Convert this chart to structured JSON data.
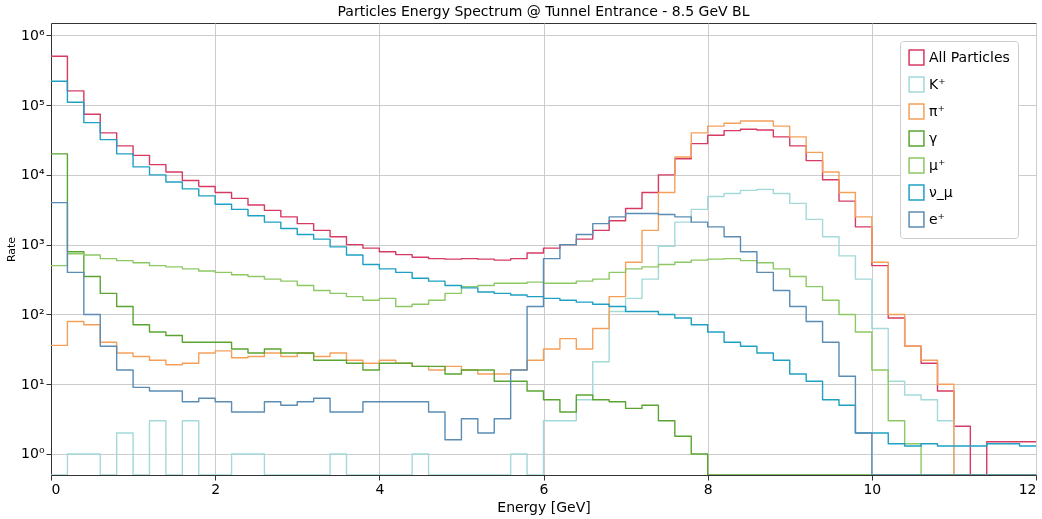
{
  "chart_data": {
    "type": "histogram",
    "title": "Particles Energy Spectrum @ Tunnel Entrance - 8.5 GeV BL",
    "xlabel": "Energy [GeV]",
    "ylabel": "Rate",
    "bins": [
      0,
      0.2,
      0.4,
      0.6,
      0.8,
      1.0,
      1.2,
      1.4,
      1.6,
      1.8,
      2.0,
      2.2,
      2.4,
      2.6,
      2.8,
      3.0,
      3.2,
      3.4,
      3.6,
      3.8,
      4.0,
      4.2,
      4.4,
      4.6,
      4.8,
      5.0,
      5.2,
      5.4,
      5.6,
      5.8,
      6.0,
      6.2,
      6.4,
      6.6,
      6.8,
      7.0,
      7.2,
      7.4,
      7.6,
      7.8,
      8.0,
      8.2,
      8.4,
      8.6,
      8.8,
      9.0,
      9.2,
      9.4,
      9.6,
      9.8,
      10.0,
      10.2,
      10.4,
      10.6,
      10.8,
      11.0,
      11.2,
      11.4,
      11.6,
      11.8,
      12.0
    ],
    "series": [
      {
        "name": "All Particles",
        "color": "#d63a62",
        "values": [
          500000,
          160000,
          74000,
          40000,
          26000,
          19000,
          14000,
          11000,
          8300,
          6800,
          5600,
          4600,
          3700,
          3100,
          2500,
          2000,
          1600,
          1300,
          1000,
          890,
          790,
          720,
          660,
          630,
          620,
          630,
          620,
          600,
          630,
          760,
          890,
          1000,
          1200,
          1600,
          2200,
          3300,
          5600,
          10000,
          17000,
          28000,
          37000,
          43000,
          45000,
          44000,
          35000,
          26000,
          16000,
          8500,
          4200,
          1800,
          500,
          89,
          35,
          20,
          8,
          2.5,
          null,
          1.5,
          1.5,
          1.5
        ]
      },
      {
        "name": "K⁺",
        "color": "#a3d9d9",
        "values": [
          null,
          1,
          1,
          null,
          2,
          null,
          3,
          null,
          3,
          null,
          null,
          1,
          1,
          null,
          null,
          null,
          null,
          1,
          null,
          null,
          null,
          null,
          1,
          null,
          null,
          null,
          null,
          null,
          1,
          null,
          3,
          3,
          6,
          21,
          110,
          170,
          320,
          950,
          2100,
          3200,
          4900,
          5400,
          6000,
          6200,
          5400,
          3900,
          2300,
          1300,
          690,
          320,
          63,
          11,
          7,
          6,
          3,
          null,
          null,
          null,
          null,
          null
        ]
      },
      {
        "name": "π⁺",
        "color": "#f5a05a",
        "values": [
          36,
          79,
          71,
          40,
          28,
          25,
          22,
          19,
          20,
          28,
          30,
          24,
          25,
          28,
          25,
          28,
          25,
          28,
          22,
          20,
          22,
          20,
          18,
          16,
          18,
          16,
          14,
          14,
          16,
          22,
          32,
          45,
          32,
          63,
          180,
          560,
          1600,
          5600,
          18000,
          40000,
          50000,
          55000,
          59000,
          59000,
          50000,
          35000,
          21000,
          11000,
          5600,
          2500,
          560,
          100,
          35,
          22,
          10,
          null,
          null,
          null,
          null,
          null
        ]
      },
      {
        "name": "γ",
        "color": "#5aa532",
        "values": [
          20000,
          790,
          350,
          200,
          130,
          71,
          56,
          50,
          40,
          40,
          40,
          32,
          28,
          32,
          28,
          28,
          22,
          22,
          20,
          16,
          20,
          20,
          18,
          18,
          14,
          16,
          16,
          11,
          11,
          8,
          6,
          4,
          7,
          6,
          5.6,
          4.5,
          5,
          3,
          1.8,
          1,
          null,
          null,
          null,
          null,
          null,
          null,
          null,
          null,
          null,
          null,
          null,
          null,
          null,
          null,
          null,
          null,
          null,
          null,
          null,
          null
        ]
      },
      {
        "name": "μ⁺",
        "color": "#8cc864",
        "values": [
          500,
          740,
          710,
          630,
          590,
          550,
          500,
          480,
          450,
          420,
          400,
          370,
          350,
          320,
          300,
          260,
          220,
          200,
          180,
          160,
          170,
          130,
          140,
          160,
          200,
          250,
          260,
          280,
          280,
          290,
          280,
          280,
          300,
          320,
          400,
          450,
          480,
          520,
          560,
          600,
          620,
          630,
          590,
          550,
          450,
          350,
          250,
          160,
          100,
          56,
          16,
          3,
          1.4,
          null,
          null,
          null,
          null,
          null,
          null,
          null
        ]
      },
      {
        "name": "ν_μ",
        "color": "#1ea0c3",
        "values": [
          220000,
          110000,
          56000,
          32000,
          20000,
          13000,
          10000,
          7900,
          6300,
          5000,
          3800,
          3200,
          2600,
          2100,
          1700,
          1400,
          1200,
          930,
          710,
          520,
          450,
          400,
          330,
          300,
          260,
          240,
          210,
          200,
          190,
          180,
          170,
          160,
          150,
          140,
          130,
          110,
          110,
          100,
          89,
          71,
          56,
          40,
          35,
          28,
          22,
          14,
          11,
          6,
          5,
          2,
          2,
          1.4,
          1.3,
          1.4,
          1.3,
          1.3,
          1.3,
          1.4,
          1.4,
          1.3
        ]
      },
      {
        "name": "e⁺",
        "color": "#5a8cb4",
        "values": [
          4000,
          400,
          100,
          35,
          16,
          9,
          8,
          8,
          5.6,
          6.3,
          5.6,
          4,
          4,
          5.6,
          5,
          5.6,
          6.3,
          4,
          4,
          5.6,
          5.6,
          5.6,
          5.6,
          4,
          1.6,
          3.2,
          2,
          3.2,
          16,
          130,
          630,
          1000,
          1400,
          2000,
          2500,
          2800,
          2800,
          2700,
          2500,
          2100,
          1800,
          1300,
          790,
          400,
          220,
          130,
          79,
          40,
          13,
          2,
          null,
          null,
          null,
          null,
          null,
          null,
          null,
          null,
          null,
          null
        ]
      }
    ],
    "xlim": [
      0,
      12
    ],
    "xticks": [
      0,
      2,
      4,
      6,
      8,
      10,
      12
    ],
    "ylim": [
      0.5,
      1500000
    ],
    "yticks": [
      {
        "value": 1,
        "label": "10⁰"
      },
      {
        "value": 10,
        "label": "10¹"
      },
      {
        "value": 100,
        "label": "10²"
      },
      {
        "value": 1000,
        "label": "10³"
      },
      {
        "value": 10000,
        "label": "10⁴"
      },
      {
        "value": 100000,
        "label": "10⁵"
      },
      {
        "value": 1000000,
        "label": "10⁶"
      }
    ],
    "log": true,
    "grid": true,
    "legend": "top right",
    "line_style": "solid"
  }
}
